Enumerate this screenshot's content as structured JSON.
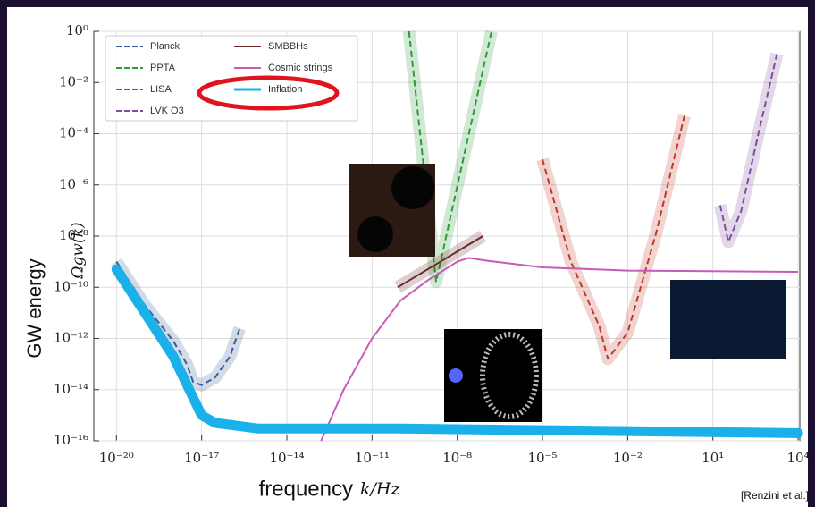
{
  "chart_data": {
    "type": "line",
    "log_x": true,
    "log_y": true,
    "grid": true,
    "legend": "upper left",
    "x_label": "frequency",
    "x_unit": "k/Hz",
    "y_label": "GW energy",
    "y_symbol": "Ωgw(k)",
    "source": "[Renzini et al.]",
    "xlim": [
      1.6e-21,
      11500
    ],
    "ylim": [
      1e-16,
      1
    ],
    "xticks": [
      {
        "value": 1e-20,
        "label": "10⁻²⁰"
      },
      {
        "value": 1e-17,
        "label": "10⁻¹⁷"
      },
      {
        "value": 1e-14,
        "label": "10⁻¹⁴"
      },
      {
        "value": 1e-11,
        "label": "10⁻¹¹"
      },
      {
        "value": 1e-08,
        "label": "10⁻⁸"
      },
      {
        "value": 1e-05,
        "label": "10⁻⁵"
      },
      {
        "value": 0.01,
        "label": "10⁻²"
      },
      {
        "value": 10,
        "label": "10¹"
      },
      {
        "value": 10000,
        "label": "10⁴"
      }
    ],
    "yticks": [
      {
        "value": 1,
        "label": "10⁰"
      },
      {
        "value": 0.01,
        "label": "10⁻²"
      },
      {
        "value": 0.0001,
        "label": "10⁻⁴"
      },
      {
        "value": 1e-06,
        "label": "10⁻⁶"
      },
      {
        "value": 1e-08,
        "label": "10⁻⁸"
      },
      {
        "value": 1e-10,
        "label": "10⁻¹⁰"
      },
      {
        "value": 1e-12,
        "label": "10⁻¹²"
      },
      {
        "value": 1e-14,
        "label": "10⁻¹⁴"
      },
      {
        "value": 1e-16,
        "label": "10⁻¹⁶"
      }
    ],
    "series": [
      {
        "name": "Planck",
        "color": "#3a5a98",
        "dashed": true,
        "band": true,
        "x": [
          1e-20,
          1e-19,
          1e-18,
          3e-18,
          5e-18,
          1e-17,
          3e-17,
          1e-16,
          2.2e-16
        ],
        "values": [
          1e-09,
          2e-11,
          8e-13,
          1e-13,
          2e-14,
          1.5e-14,
          3e-14,
          2e-13,
          2.5e-12
        ]
      },
      {
        "name": "PPTA",
        "color": "#2e9a3a",
        "dashed": true,
        "band": true,
        "x": [
          2e-10,
          1.8e-09,
          1.6e-07
        ],
        "values": [
          1,
          1.6e-10,
          1
        ]
      },
      {
        "name": "LISA",
        "color": "#c0392b",
        "dashed": true,
        "band": true,
        "x": [
          1e-05,
          0.0001,
          0.001,
          0.002,
          0.01,
          0.1,
          1
        ],
        "values": [
          1e-05,
          1e-09,
          3e-12,
          1.6e-13,
          1.7e-12,
          1.3e-08,
          0.0005
        ]
      },
      {
        "name": "LVK O3",
        "color": "#7b4fa0",
        "dashed": true,
        "band": true,
        "x": [
          18,
          35,
          100,
          400,
          1800
        ],
        "values": [
          1.6e-07,
          6e-09,
          1e-07,
          0.0001,
          0.13
        ]
      },
      {
        "name": "SMBBHs",
        "color": "#6b2a2a",
        "dashed": false,
        "band": true,
        "x": [
          8e-11,
          8e-08
        ],
        "values": [
          1e-10,
          1e-08
        ]
      },
      {
        "name": "Cosmic strings",
        "color": "#c85ab8",
        "dashed": false,
        "band": false,
        "x": [
          1.6e-13,
          1e-12,
          1e-11,
          1e-10,
          1e-09,
          1e-08,
          2.5e-08,
          1e-07,
          1e-05,
          0.01,
          10000
        ],
        "values": [
          1e-16,
          1e-14,
          1e-12,
          3e-11,
          2e-10,
          1e-09,
          1.4e-09,
          1.1e-09,
          6e-10,
          4.5e-10,
          4e-10
        ]
      },
      {
        "name": "Inflation",
        "color": "#1ab0ea",
        "dashed": false,
        "band": false,
        "thick": true,
        "x": [
          1e-20,
          1e-19,
          1e-18,
          1e-17,
          3e-17,
          1e-15,
          1e-10,
          1e-05,
          10000
        ],
        "values": [
          5e-10,
          1e-11,
          2e-13,
          1e-15,
          5e-16,
          3e-16,
          3e-16,
          2.6e-16,
          2e-16
        ]
      }
    ]
  }
}
